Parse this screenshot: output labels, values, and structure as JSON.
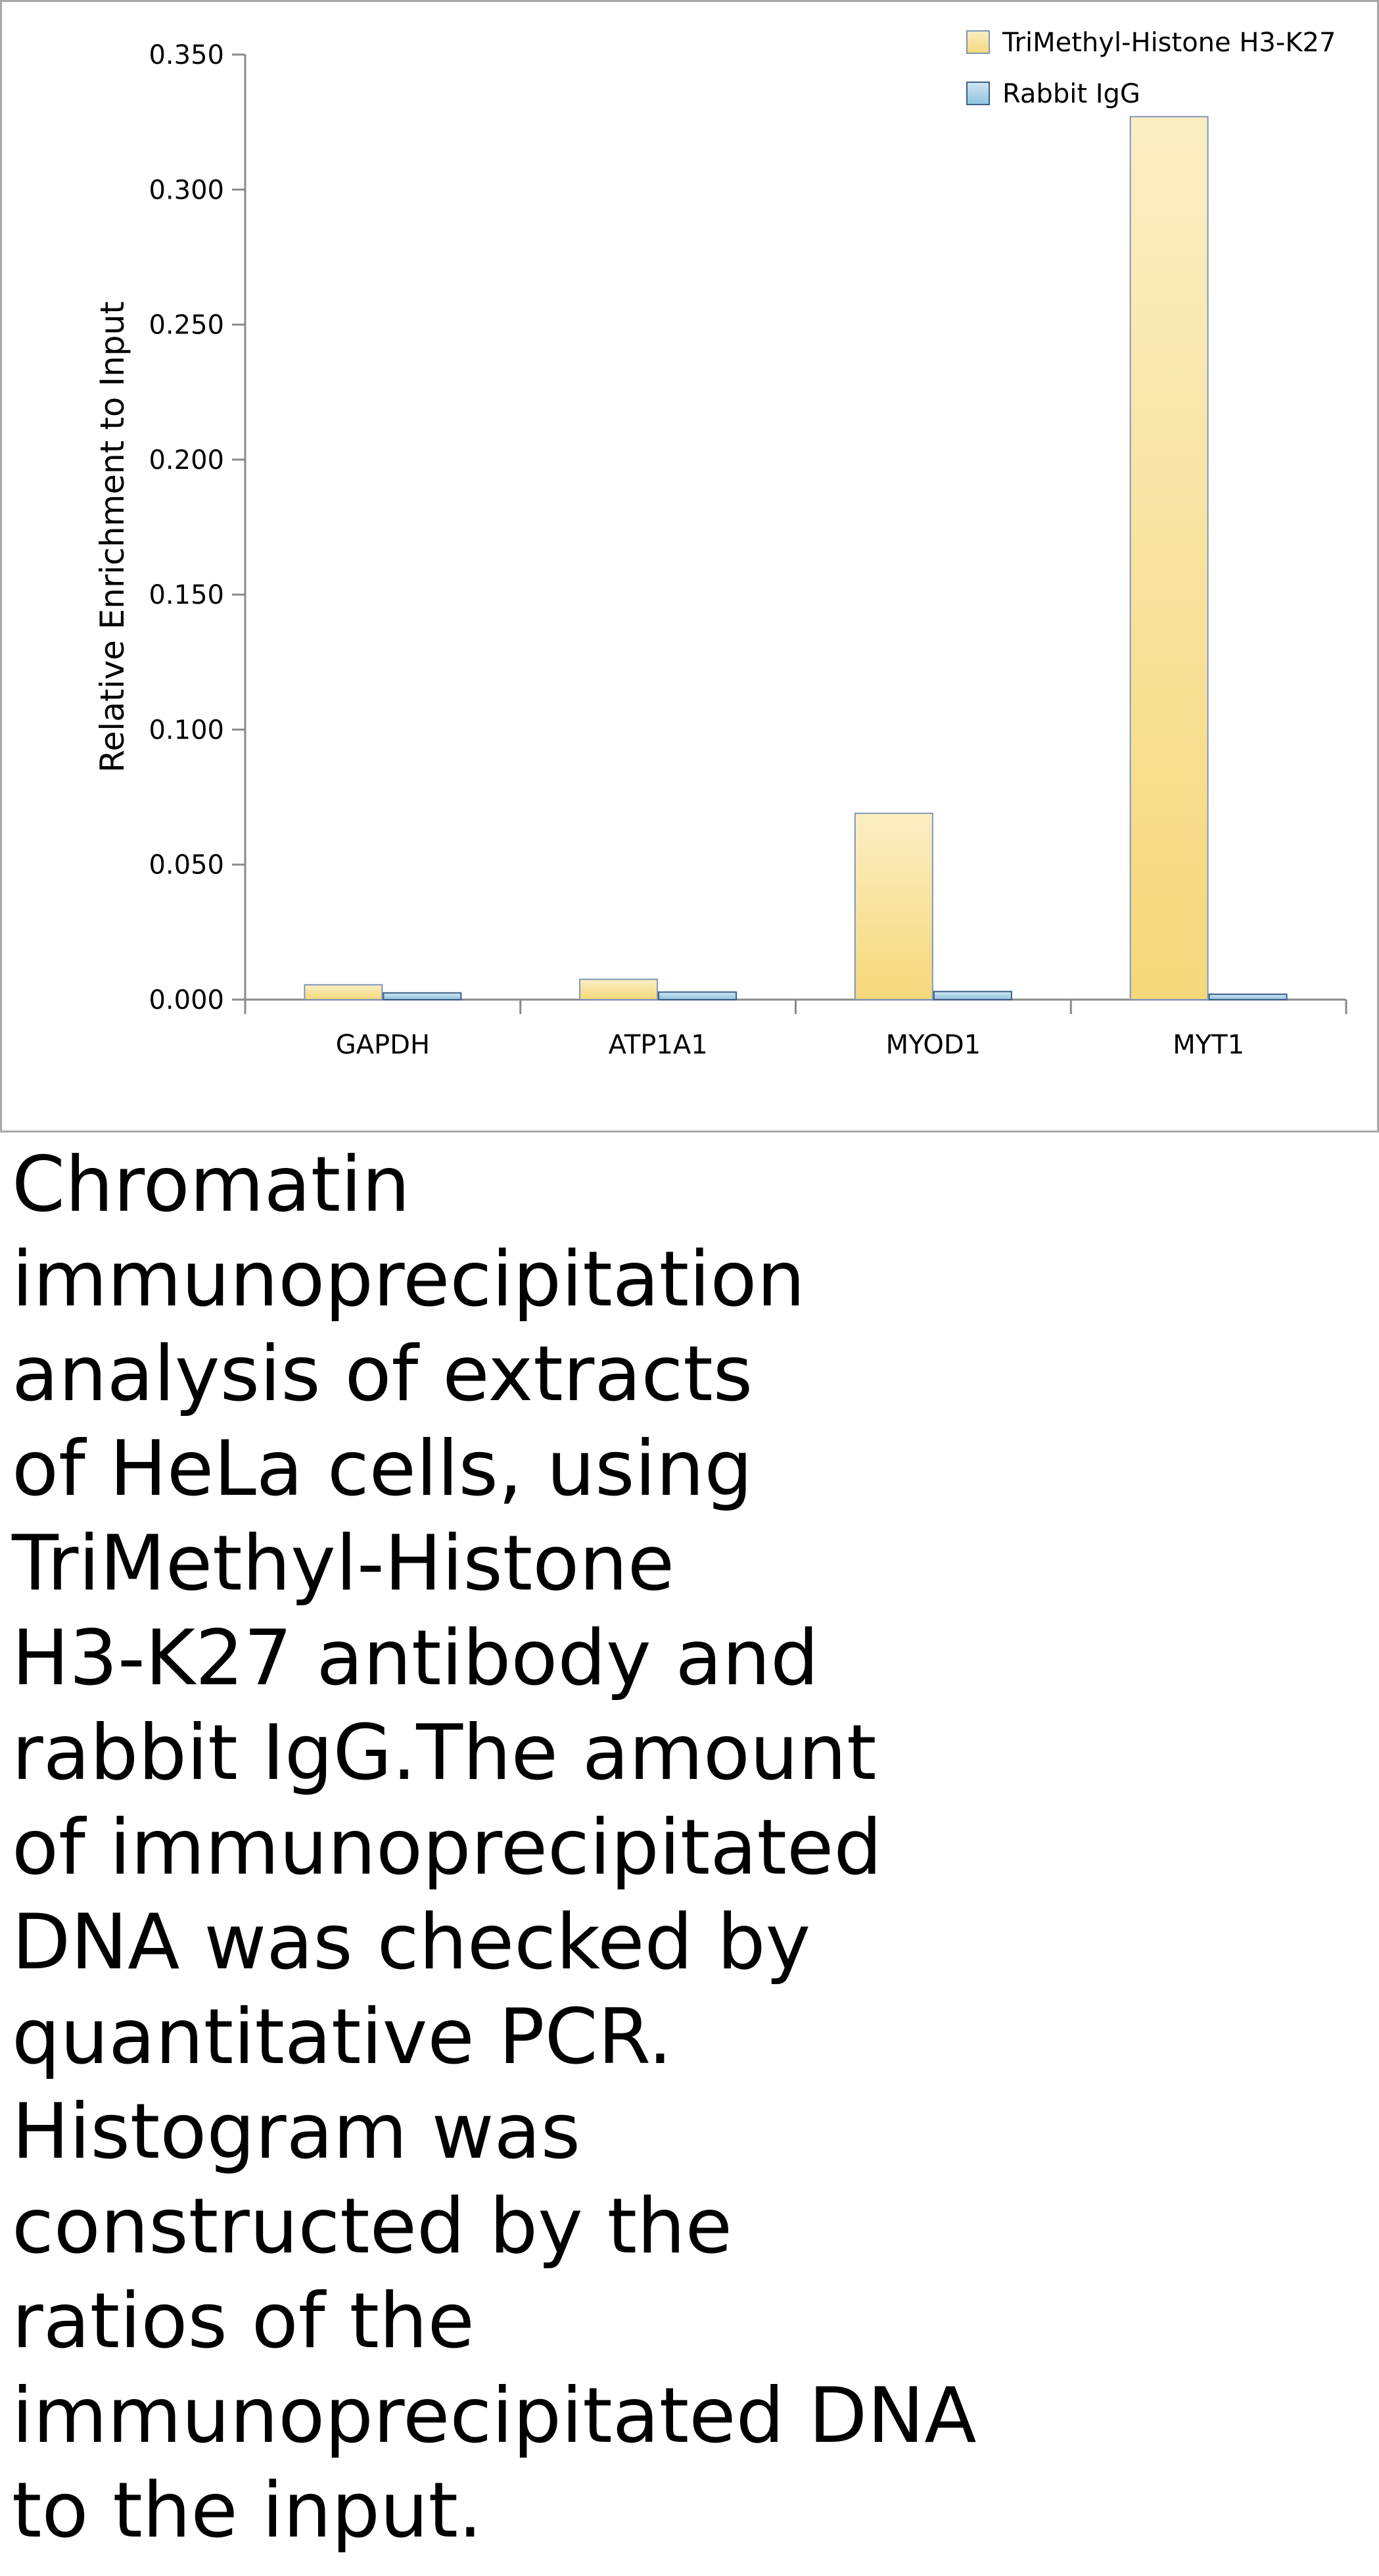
{
  "chart_data": {
    "type": "bar",
    "categories": [
      "GAPDH",
      "ATP1A1",
      "MYOD1",
      "MYT1"
    ],
    "series": [
      {
        "name": "TriMethyl-Histone H3-K27",
        "values": [
          0.0055,
          0.0075,
          0.069,
          0.327
        ],
        "color": "#f5d87a"
      },
      {
        "name": "Rabbit IgG",
        "values": [
          0.0025,
          0.0028,
          0.003,
          0.002
        ],
        "color": "#8ec4de"
      }
    ],
    "title": "",
    "xlabel": "",
    "ylabel": "Relative Enrichment to Input",
    "ylim": [
      0,
      0.35
    ],
    "yticks": [
      "0.000",
      "0.050",
      "0.100",
      "0.150",
      "0.200",
      "0.250",
      "0.300",
      "0.350"
    ],
    "grid": false,
    "legend_position": "top-right"
  },
  "caption_lines": [
    "Chromatin",
    "immunoprecipitation",
    "analysis of extracts",
    "of HeLa cells, using",
    "TriMethyl-Histone",
    "H3-K27 antibody and",
    "rabbit IgG.The amount",
    "of immunoprecipitated",
    "DNA was checked by",
    "quantitative PCR.",
    "Histogram was",
    "constructed by the",
    "ratios of the",
    "immunoprecipitated DNA",
    "to the input."
  ]
}
